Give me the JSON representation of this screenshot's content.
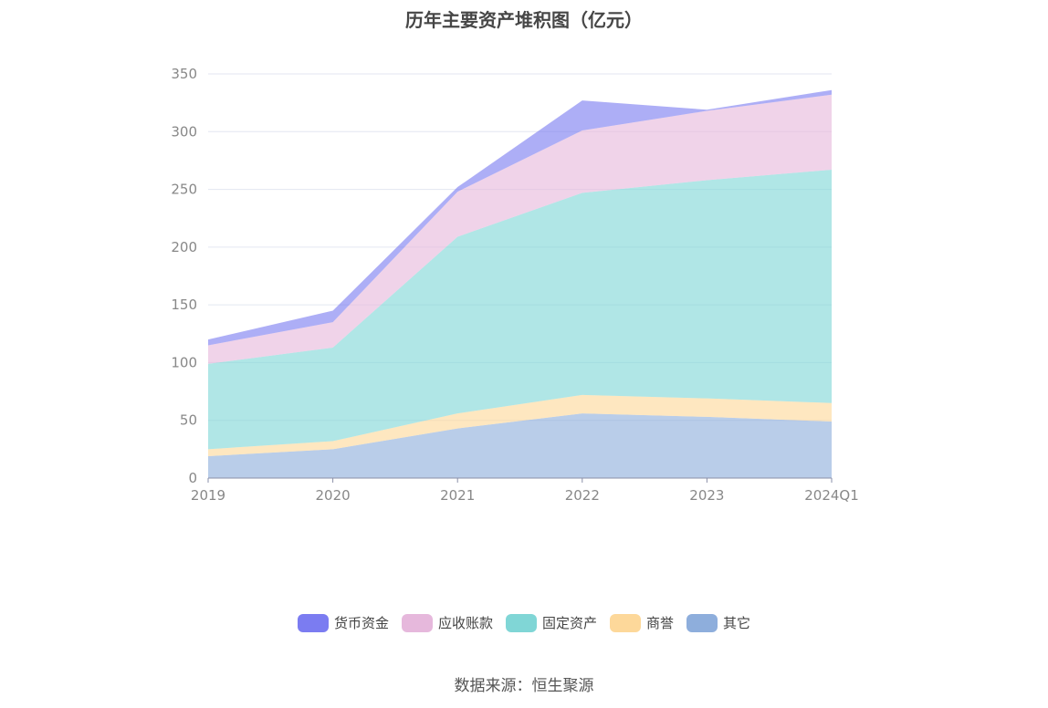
{
  "title": "历年主要资产堆积图（亿元）",
  "source": "数据来源：恒生聚源",
  "chart_data": {
    "type": "area",
    "stacked": true,
    "categories": [
      "2019",
      "2020",
      "2021",
      "2022",
      "2023",
      "2024Q1"
    ],
    "ylim": [
      0,
      350
    ],
    "yticks": [
      0,
      50,
      100,
      150,
      200,
      250,
      300,
      350
    ],
    "grid": true,
    "legend_position": "bottom",
    "series": [
      {
        "name": "其它",
        "color": "#8eaedc",
        "values": [
          19,
          25,
          43,
          56,
          53,
          49
        ]
      },
      {
        "name": "商誉",
        "color": "#fdd89a",
        "values": [
          6,
          7,
          13,
          16,
          16,
          16
        ]
      },
      {
        "name": "固定资产",
        "color": "#80d6d6",
        "values": [
          74,
          81,
          153,
          175,
          189,
          202
        ]
      },
      {
        "name": "应收账款",
        "color": "#e6b8dc",
        "values": [
          16,
          22,
          39,
          54,
          60,
          65
        ]
      },
      {
        "name": "货币资金",
        "color": "#7b7cf1",
        "values": [
          5,
          10,
          4,
          26,
          1,
          4
        ]
      }
    ],
    "legend_order": [
      "货币资金",
      "应收账款",
      "固定资产",
      "商誉",
      "其它"
    ]
  }
}
